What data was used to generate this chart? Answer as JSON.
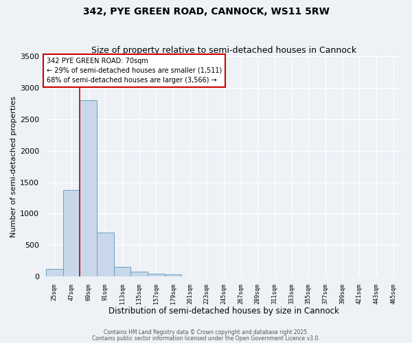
{
  "title_line1": "342, PYE GREEN ROAD, CANNOCK, WS11 5RW",
  "title_line2": "Size of property relative to semi-detached houses in Cannock",
  "xlabel": "Distribution of semi-detached houses by size in Cannock",
  "ylabel": "Number of semi-detached properties",
  "bar_color": "#c8d8ea",
  "bar_edge_color": "#6a9fc0",
  "annotation_text": "342 PYE GREEN ROAD: 70sqm\n← 29% of semi-detached houses are smaller (1,511)\n68% of semi-detached houses are larger (3,566) →",
  "annotation_box_color": "#ffffff",
  "annotation_edge_color": "#cc0000",
  "property_line_x": 69,
  "property_line_color": "#cc0000",
  "bins": [
    25,
    47,
    69,
    91,
    113,
    135,
    157,
    179,
    201,
    223,
    245,
    267,
    289,
    311,
    333,
    355,
    377,
    399,
    421,
    443,
    465
  ],
  "values": [
    120,
    1380,
    2800,
    700,
    155,
    80,
    40,
    30,
    0,
    0,
    0,
    0,
    0,
    0,
    0,
    0,
    0,
    0,
    0,
    0
  ],
  "ylim": [
    0,
    3500
  ],
  "yticks": [
    0,
    500,
    1000,
    1500,
    2000,
    2500,
    3000,
    3500
  ],
  "background_color": "#eef2f7",
  "grid_color": "#ffffff",
  "footer_line1": "Contains HM Land Registry data © Crown copyright and database right 2025.",
  "footer_line2": "Contains public sector information licensed under the Open Government Licence v3.0.",
  "title_fontsize": 10,
  "subtitle_fontsize": 9,
  "xlabel_fontsize": 8.5,
  "ylabel_fontsize": 8
}
